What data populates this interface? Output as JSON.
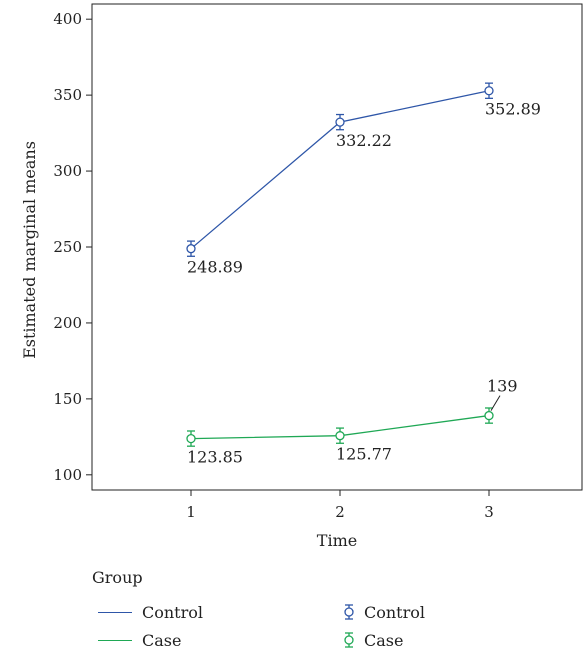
{
  "chart_data": {
    "type": "line",
    "categories": [
      "1",
      "2",
      "3"
    ],
    "xlabel": "Time",
    "ylabel": "Estimated marginal means",
    "ylim": [
      90,
      410
    ],
    "yticks": [
      100,
      150,
      200,
      250,
      300,
      350,
      400
    ],
    "grid": false,
    "series": [
      {
        "name": "Control",
        "color": "#2e56a8",
        "values": [
          248.89,
          332.22,
          352.89
        ],
        "error": [
          5,
          5,
          5
        ],
        "labels": [
          "248.89",
          "332.22",
          "352.89"
        ]
      },
      {
        "name": "Case",
        "color": "#1fa855",
        "values": [
          123.85,
          125.77,
          139
        ],
        "error": [
          5,
          5,
          5
        ],
        "labels": [
          "123.85",
          "125.77",
          "139"
        ]
      }
    ],
    "legend": {
      "title": "Group",
      "placement": "bottom",
      "line_items": [
        "Control",
        "Case"
      ],
      "marker_items": [
        "Control",
        "Case"
      ]
    }
  }
}
